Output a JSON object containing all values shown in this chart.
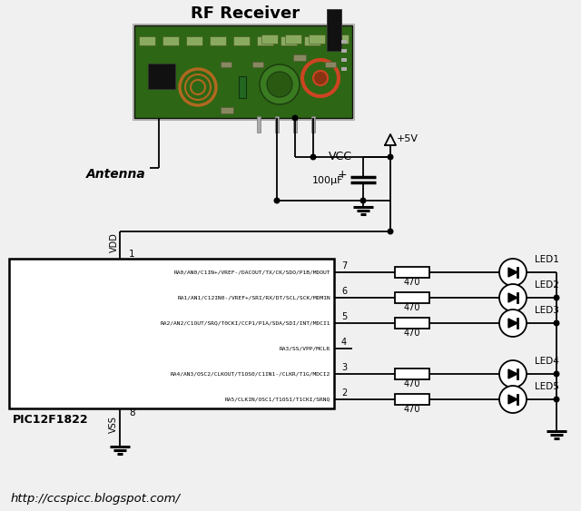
{
  "title": "RF Receiver",
  "bg_color": "#f0f0f0",
  "url": "http://ccspicc.blogspot.com/",
  "pic_label": "PIC12F1822",
  "pic_pins_right": [
    {
      "num": "7",
      "label": "RA0/AN0/C1IN+/VREF-/DACOUT/TX/CK/SDO/P1B/MDOUT"
    },
    {
      "num": "6",
      "label": "RA1/AN1/C12IN0-/VREF+/SRI/RX/DT/SCL/SCK/MDMIN"
    },
    {
      "num": "5",
      "label": "RA2/AN2/C1OUT/SRQ/T0CKI/CCP1/P1A/SDA/SDI/INT/MDCI1"
    },
    {
      "num": "4",
      "label": "RA3/SS/VPP/MCLR"
    },
    {
      "num": "3",
      "label": "RA4/AN3/OSC2/CLKOUT/T1OS0/C1IN1-/CLKR/T1G/MDCI2"
    },
    {
      "num": "2",
      "label": "RA5/CLKIN/OSC1/T1OSI/T1CKI/SRNQ"
    }
  ],
  "vdd_label": "VDD",
  "vss_label": "VSS",
  "vdd_pin": "1",
  "vss_pin": "8",
  "capacitor_label": "100μF",
  "resistor_value": "470",
  "led_labels": [
    "LED1",
    "LED2",
    "LED3",
    "LED4",
    "LED5"
  ],
  "antenna_label": "Antenna",
  "vcc_label": "VCC",
  "v5_label": "+5V",
  "pcb_green": "#2d6614",
  "pcb_light": "#3d8820",
  "pcb_component": "#507030",
  "white": "#ffffff",
  "black": "#000000",
  "url_color": "#000000"
}
